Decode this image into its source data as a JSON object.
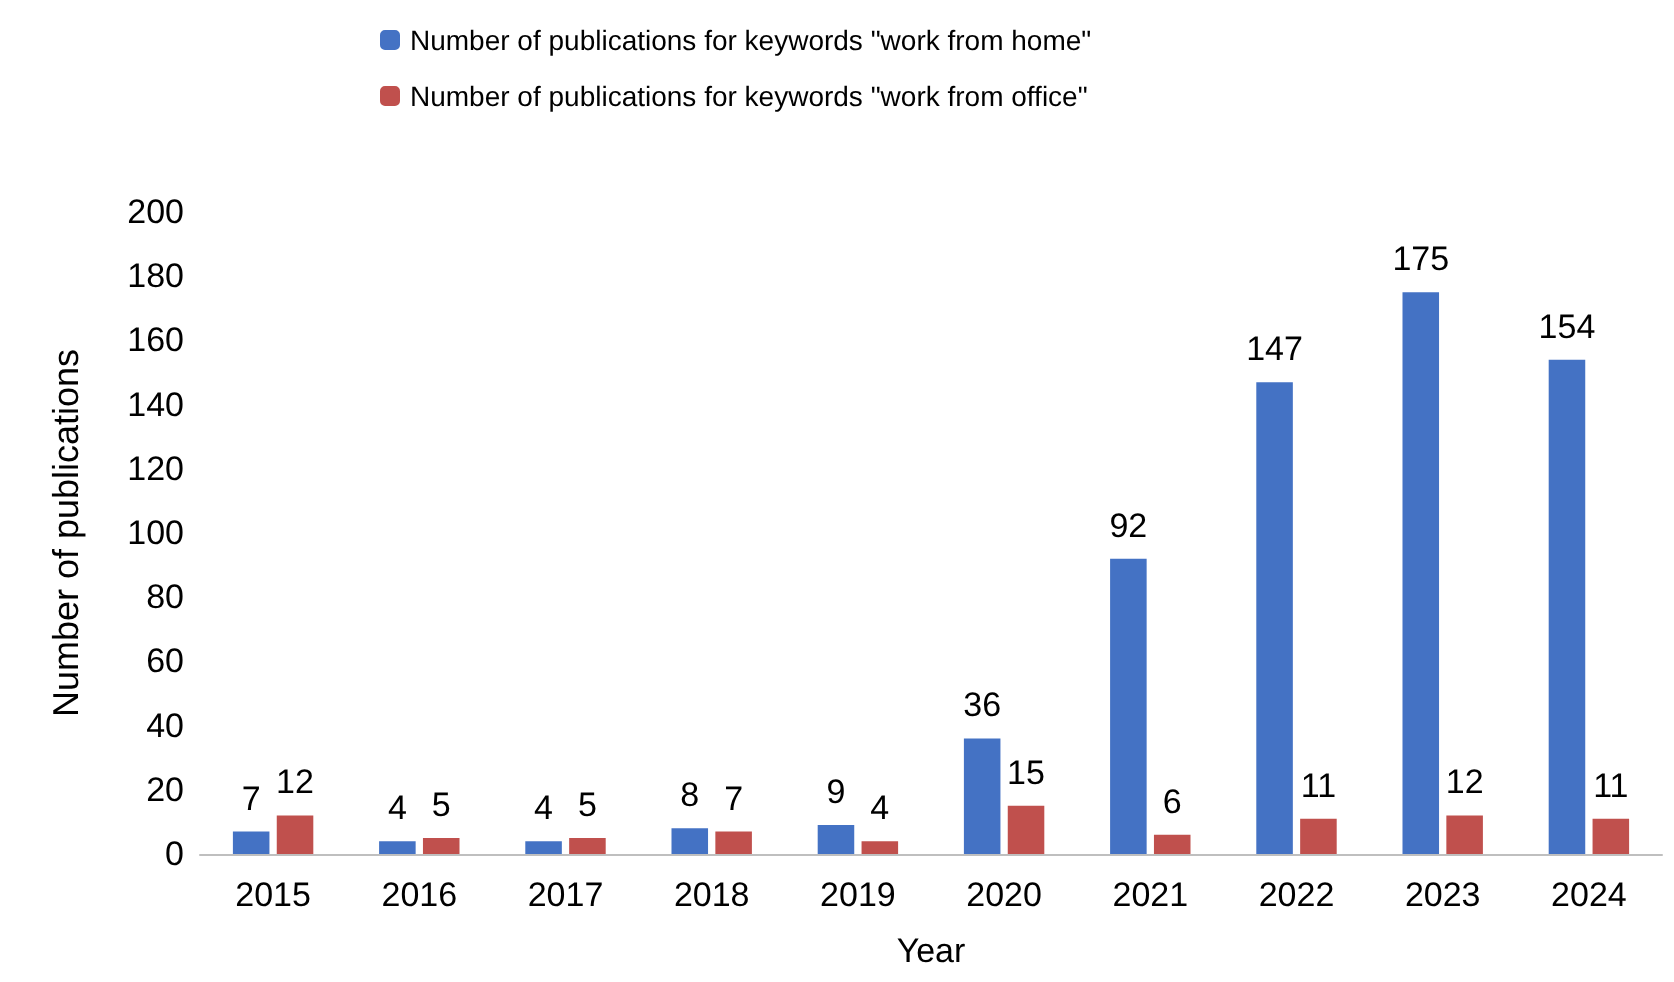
{
  "chart_data": {
    "type": "bar",
    "xlabel": "Year",
    "ylabel": "Number of publications",
    "categories": [
      "2015",
      "2016",
      "2017",
      "2018",
      "2019",
      "2020",
      "2021",
      "2022",
      "2023",
      "2024"
    ],
    "series": [
      {
        "name": "Number of publications for keywords \"work from home\"",
        "color": "#4472c4",
        "values": [
          7,
          4,
          4,
          8,
          9,
          36,
          92,
          147,
          175,
          154
        ]
      },
      {
        "name": "Number of publications for keywords \"work from office\"",
        "color": "#c0504d",
        "values": [
          12,
          5,
          5,
          7,
          4,
          15,
          6,
          11,
          12,
          11
        ]
      }
    ],
    "ylim": [
      0,
      200
    ],
    "yticks": [
      0,
      20,
      40,
      60,
      80,
      100,
      120,
      140,
      160,
      180,
      200
    ],
    "grid": false,
    "legend": "top",
    "data_labels": true
  }
}
